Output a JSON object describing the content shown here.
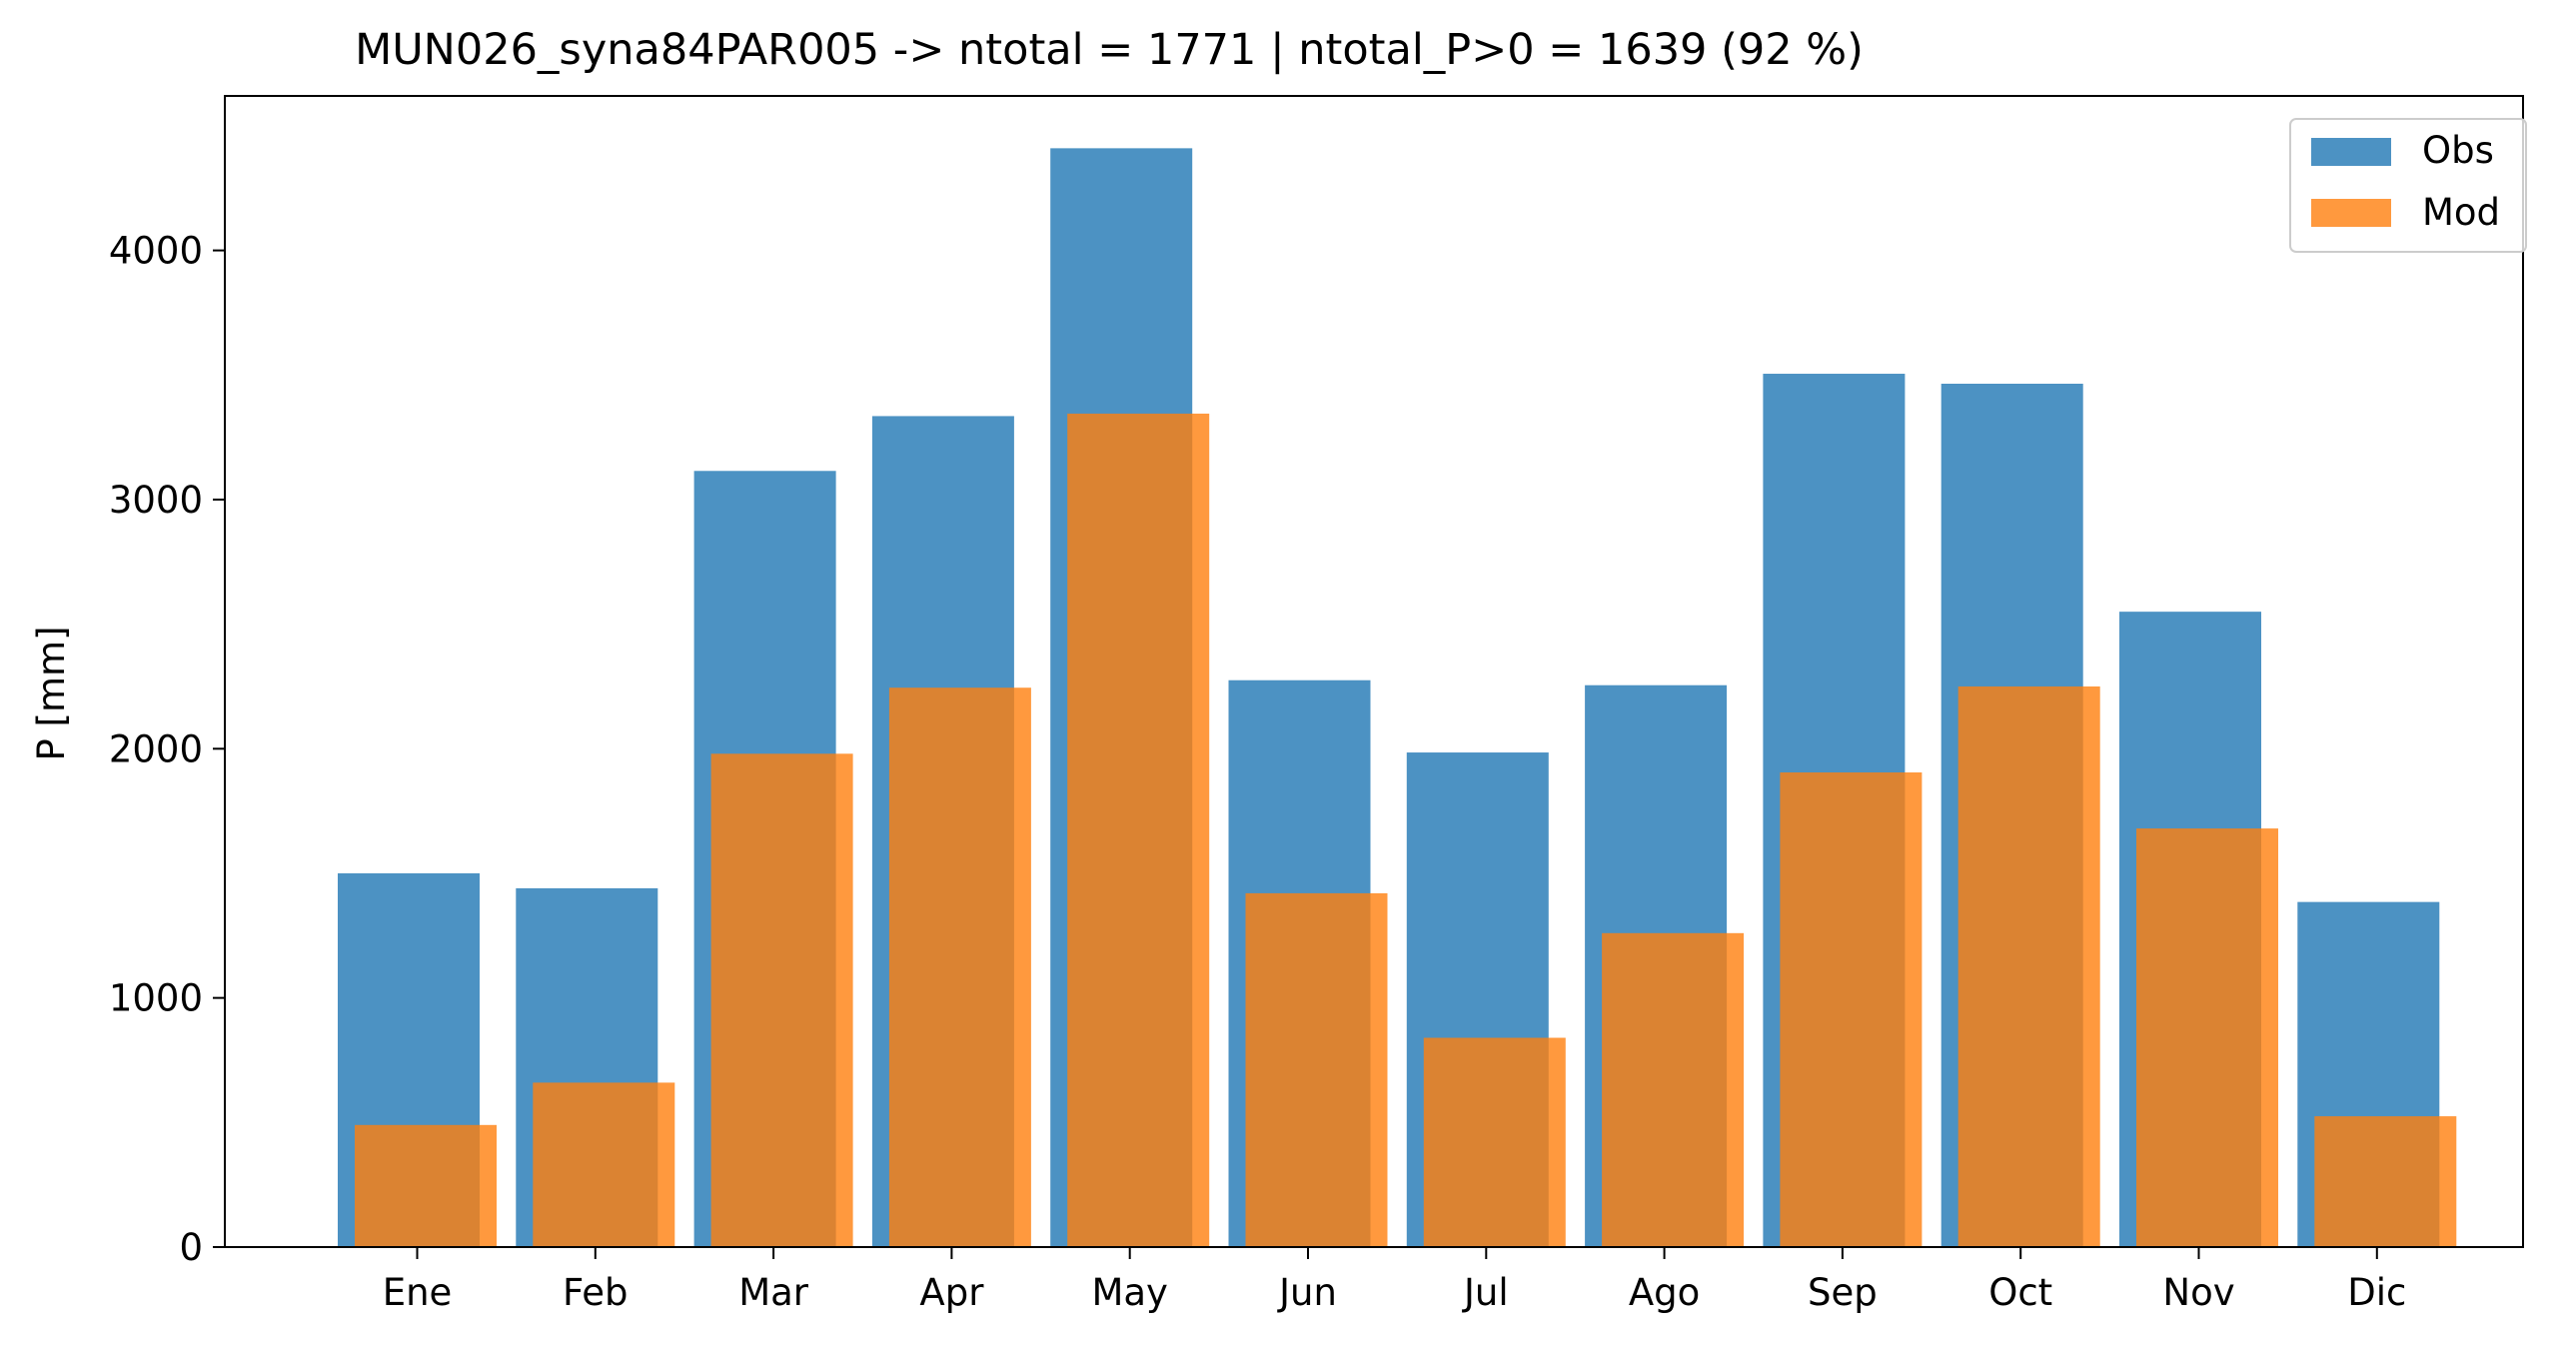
{
  "chart_data": {
    "type": "bar",
    "title": "MUN026_syna84PAR005 -> ntotal = 1771 | ntotal_P>0 = 1639 (92 %)",
    "xlabel": "",
    "ylabel": "P [mm]",
    "ylim": [
      0,
      4620
    ],
    "yticks": [
      0,
      1000,
      2000,
      3000,
      4000
    ],
    "grid": false,
    "legend_position": "top-right",
    "categories": [
      "Ene",
      "Feb",
      "Mar",
      "Apr",
      "May",
      "Jun",
      "Jul",
      "Ago",
      "Sep",
      "Oct",
      "Nov",
      "Dic"
    ],
    "series": [
      {
        "name": "Obs",
        "color": "#1f77b4",
        "opacity": 0.8,
        "values": [
          1500,
          1440,
          3115,
          3335,
          4410,
          2275,
          1985,
          2255,
          3505,
          3465,
          2550,
          1385
        ]
      },
      {
        "name": "Mod",
        "color": "#ff7f0e",
        "opacity": 0.8,
        "values": [
          490,
          660,
          1980,
          2245,
          3345,
          1420,
          840,
          1260,
          1905,
          2250,
          1680,
          525
        ]
      }
    ]
  }
}
